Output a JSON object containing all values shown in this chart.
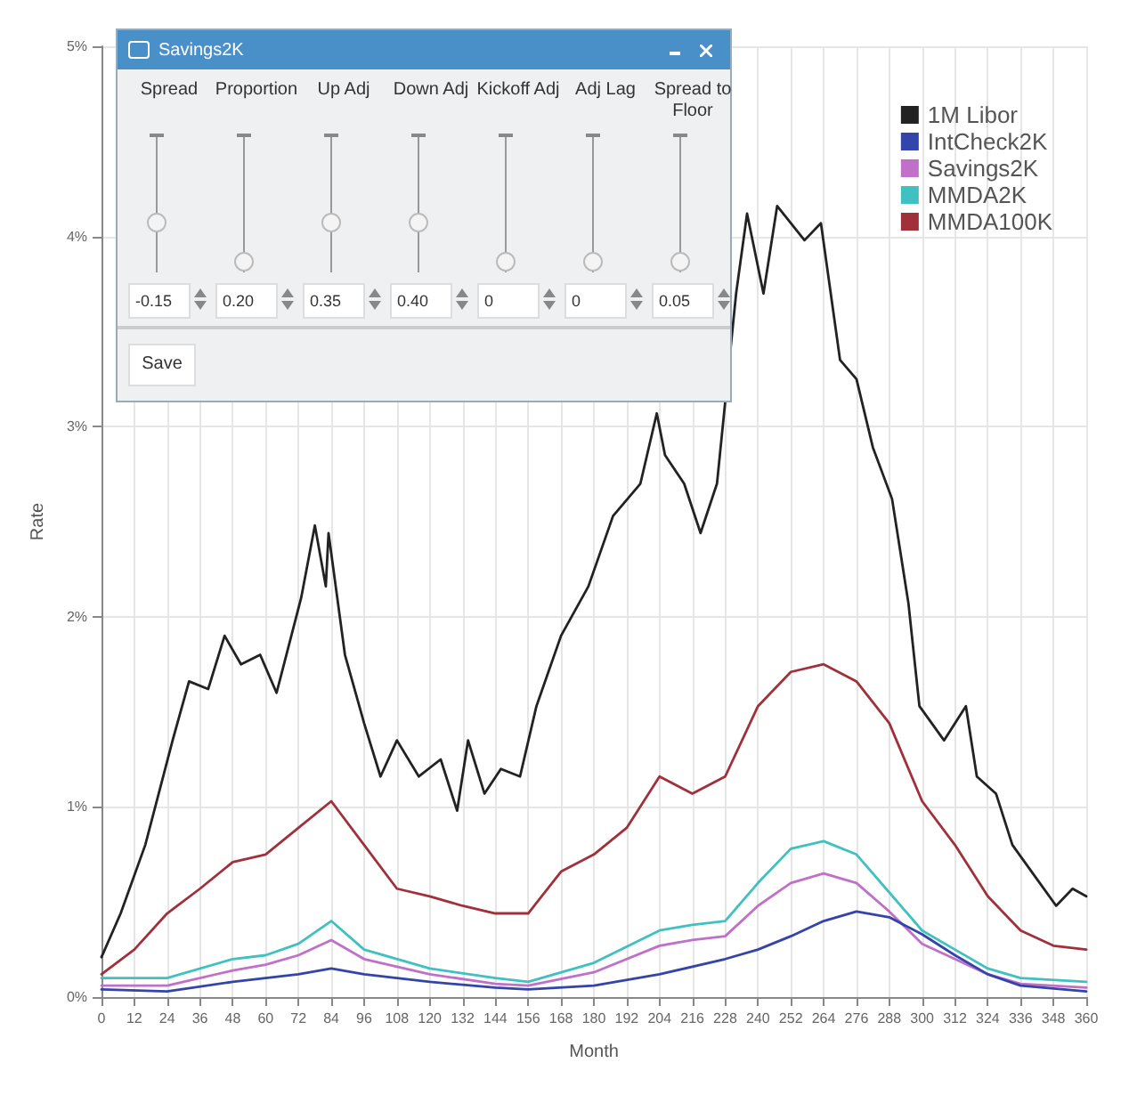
{
  "chart_data": {
    "type": "line",
    "xlabel": "Month",
    "ylabel": "Rate",
    "xlim": [
      0,
      360
    ],
    "xticks": [
      0,
      12,
      24,
      36,
      48,
      60,
      72,
      84,
      96,
      108,
      120,
      132,
      144,
      156,
      168,
      180,
      192,
      204,
      216,
      228,
      240,
      252,
      264,
      276,
      288,
      300,
      312,
      324,
      336,
      348,
      360
    ],
    "ylim": [
      0,
      5
    ],
    "yticks": [
      {
        "value": 0,
        "label": "0%"
      },
      {
        "value": 1,
        "label": "1%"
      },
      {
        "value": 2,
        "label": "2%"
      },
      {
        "value": 3,
        "label": "3%"
      },
      {
        "value": 4,
        "label": "4%"
      },
      {
        "value": 5,
        "label": "5%"
      }
    ],
    "grid": true,
    "legend": "top right",
    "marker": "none",
    "line_style": "solid",
    "annotations": [
      "Savings2K",
      "Spread",
      "Proportion",
      "Up Adj",
      "Down Adj",
      "Kickoff Adj",
      "Adj Lag",
      "Spread to Floor",
      "-0.15",
      "0.20",
      "0.35",
      "0.40",
      "0",
      "0",
      "0.05",
      "Save"
    ],
    "series": [
      {
        "name": "1M Libor",
        "color": "#222222",
        "x": [
          0,
          7,
          16,
          26,
          32,
          39,
          45,
          51,
          58,
          64,
          73,
          78,
          82,
          83,
          89,
          96,
          102,
          108,
          116,
          124,
          130,
          134,
          140,
          146,
          153,
          159,
          168,
          178,
          187,
          197,
          203,
          206,
          213,
          219,
          225,
          232,
          236,
          242,
          247,
          257,
          263,
          270,
          276,
          282,
          289,
          295,
          299,
          308,
          316,
          320,
          327,
          333,
          342,
          349,
          355,
          360
        ],
        "values": [
          0.21,
          0.44,
          0.8,
          1.35,
          1.66,
          1.62,
          1.9,
          1.75,
          1.8,
          1.6,
          2.1,
          2.48,
          2.16,
          2.44,
          1.8,
          1.44,
          1.16,
          1.35,
          1.16,
          1.25,
          0.98,
          1.35,
          1.07,
          1.2,
          1.16,
          1.53,
          1.9,
          2.16,
          2.53,
          2.7,
          3.07,
          2.85,
          2.7,
          2.44,
          2.7,
          3.7,
          4.12,
          3.7,
          4.16,
          3.98,
          4.07,
          3.35,
          3.25,
          2.89,
          2.62,
          2.07,
          1.53,
          1.35,
          1.53,
          1.16,
          1.07,
          0.8,
          0.62,
          0.48,
          0.57,
          0.53
        ]
      },
      {
        "name": "IntCheck2K",
        "color": "#3344aa",
        "x": [
          0,
          24,
          48,
          72,
          84,
          96,
          120,
          144,
          156,
          180,
          204,
          228,
          240,
          252,
          264,
          276,
          288,
          300,
          312,
          324,
          336,
          360
        ],
        "values": [
          0.04,
          0.03,
          0.08,
          0.12,
          0.15,
          0.12,
          0.08,
          0.05,
          0.04,
          0.06,
          0.12,
          0.2,
          0.25,
          0.32,
          0.4,
          0.45,
          0.42,
          0.33,
          0.22,
          0.12,
          0.06,
          0.03
        ]
      },
      {
        "name": "Savings2K",
        "color": "#c070c8",
        "x": [
          0,
          24,
          48,
          60,
          72,
          84,
          96,
          120,
          144,
          156,
          180,
          204,
          216,
          228,
          240,
          252,
          264,
          276,
          288,
          300,
          312,
          324,
          336,
          360
        ],
        "values": [
          0.06,
          0.06,
          0.14,
          0.17,
          0.22,
          0.3,
          0.2,
          0.12,
          0.07,
          0.06,
          0.13,
          0.27,
          0.3,
          0.32,
          0.48,
          0.6,
          0.65,
          0.6,
          0.45,
          0.28,
          0.2,
          0.12,
          0.07,
          0.05
        ]
      },
      {
        "name": "MMDA2K",
        "color": "#40c0c0",
        "x": [
          0,
          24,
          48,
          60,
          72,
          84,
          96,
          120,
          144,
          156,
          180,
          204,
          216,
          228,
          240,
          252,
          264,
          276,
          288,
          300,
          312,
          324,
          336,
          360
        ],
        "values": [
          0.1,
          0.1,
          0.2,
          0.22,
          0.28,
          0.4,
          0.25,
          0.15,
          0.1,
          0.08,
          0.18,
          0.35,
          0.38,
          0.4,
          0.6,
          0.78,
          0.82,
          0.75,
          0.55,
          0.35,
          0.25,
          0.15,
          0.1,
          0.08
        ]
      },
      {
        "name": "MMDA100K",
        "color": "#a0303a",
        "x": [
          0,
          12,
          24,
          36,
          48,
          60,
          72,
          84,
          96,
          108,
          120,
          132,
          144,
          156,
          168,
          180,
          192,
          204,
          216,
          228,
          240,
          252,
          264,
          276,
          288,
          300,
          312,
          324,
          336,
          348,
          360
        ],
        "values": [
          0.12,
          0.25,
          0.44,
          0.57,
          0.71,
          0.75,
          0.89,
          1.03,
          0.8,
          0.57,
          0.53,
          0.48,
          0.44,
          0.44,
          0.66,
          0.75,
          0.89,
          1.16,
          1.07,
          1.16,
          1.53,
          1.71,
          1.75,
          1.66,
          1.44,
          1.03,
          0.8,
          0.53,
          0.35,
          0.27,
          0.25
        ]
      }
    ]
  }
}
